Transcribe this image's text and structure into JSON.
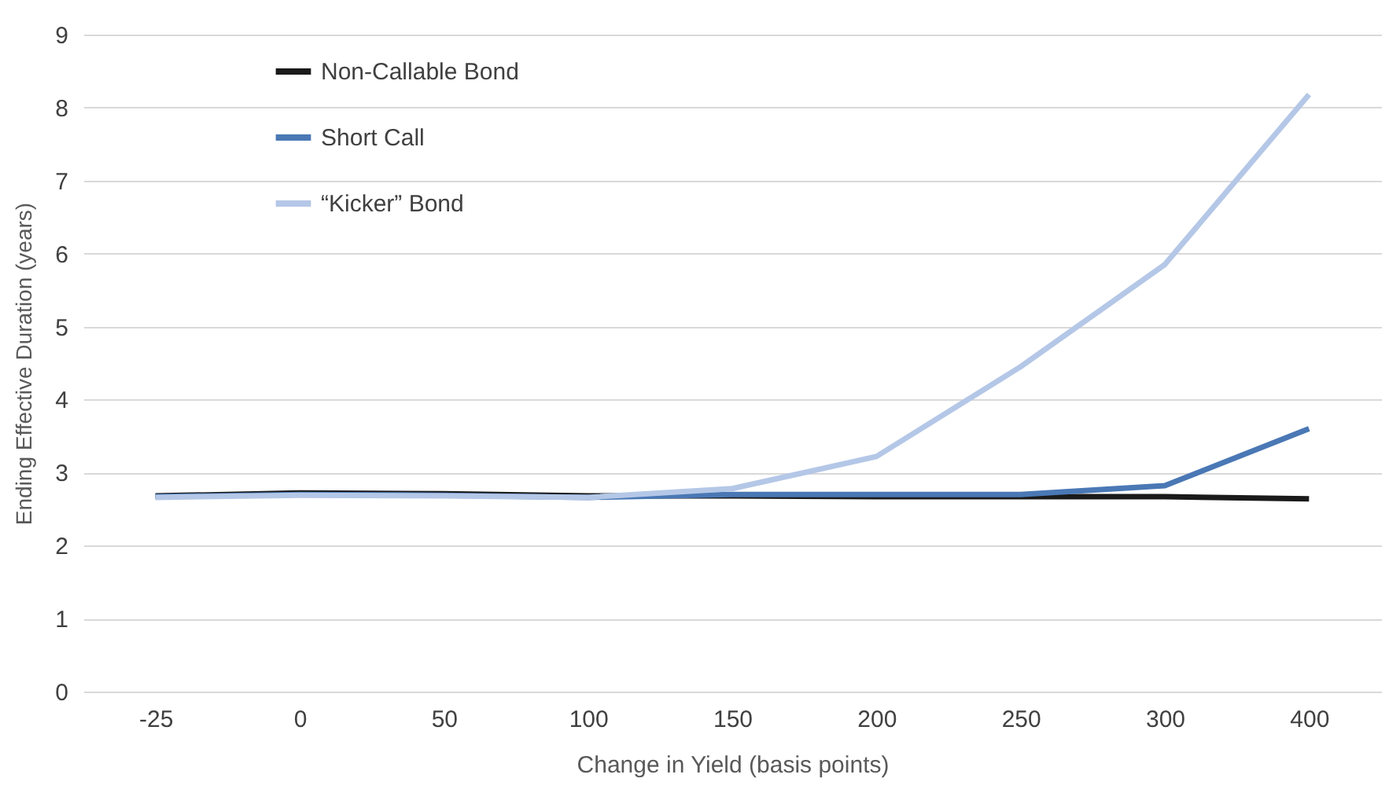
{
  "chart_data": {
    "type": "line",
    "xlabel": "Change in Yield (basis points)",
    "ylabel": "Ending Effective Duration (years)",
    "categories": [
      "-25",
      "0",
      "50",
      "100",
      "150",
      "200",
      "250",
      "300",
      "400"
    ],
    "series": [
      {
        "name": "Non-Callable Bond",
        "color": "#1a1a1a",
        "values": [
          2.68,
          2.72,
          2.71,
          2.68,
          2.68,
          2.67,
          2.67,
          2.67,
          2.64
        ]
      },
      {
        "name": "Short Call",
        "color": "#4a78b5",
        "values": [
          2.67,
          2.7,
          2.69,
          2.66,
          2.7,
          2.7,
          2.7,
          2.82,
          3.6
        ]
      },
      {
        "name": "“Kicker” Bond",
        "color": "#b4c7e7",
        "values": [
          2.66,
          2.69,
          2.68,
          2.66,
          2.78,
          3.22,
          4.45,
          5.85,
          8.18
        ]
      }
    ],
    "ylim": [
      0,
      9
    ],
    "yticks": [
      0,
      1,
      2,
      3,
      4,
      5,
      6,
      7,
      8,
      9
    ],
    "grid": "y",
    "legend": "top left",
    "marker": "none",
    "line_style": "solid"
  }
}
